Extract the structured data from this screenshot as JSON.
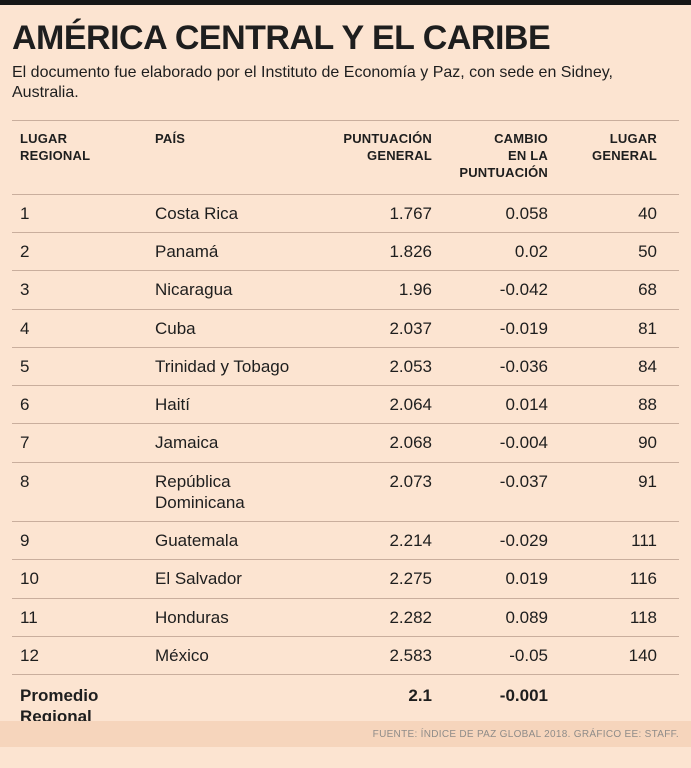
{
  "page": {
    "title": "AMÉRICA CENTRAL Y EL CARIBE",
    "subtitle": "El documento fue elaborado por el Instituto de Economía y Paz, con sede en Sidney, Australia.",
    "source": "FUENTE: ÍNDICE DE PAZ GLOBAL 2018. GRÁFICO EE: STAFF."
  },
  "colors": {
    "background": "#fce4d1",
    "footer_band": "#f6d5bc",
    "rule": "#c9ae9d",
    "text": "#1e1e1e",
    "source_text": "#8f8c89",
    "top_bar": "#161616"
  },
  "table": {
    "headers": {
      "rank_regional": "LUGAR\nREGIONAL",
      "country": "PAÍS",
      "score": "PUNTUACIÓN\nGENERAL",
      "change": "CAMBIO\nEN LA\nPUNTUACIÓN",
      "rank_global": "LUGAR\nGENERAL"
    },
    "rows": [
      {
        "rank": "1",
        "country": "Costa Rica",
        "score": "1.767",
        "change": "0.058",
        "global": "40"
      },
      {
        "rank": "2",
        "country": "Panamá",
        "score": "1.826",
        "change": "0.02",
        "global": "50"
      },
      {
        "rank": "3",
        "country": "Nicaragua",
        "score": "1.96",
        "change": "-0.042",
        "global": "68"
      },
      {
        "rank": "4",
        "country": "Cuba",
        "score": "2.037",
        "change": "-0.019",
        "global": "81"
      },
      {
        "rank": "5",
        "country": "Trinidad y Tobago",
        "score": "2.053",
        "change": "-0.036",
        "global": "84"
      },
      {
        "rank": "6",
        "country": "Haití",
        "score": "2.064",
        "change": "0.014",
        "global": "88"
      },
      {
        "rank": "7",
        "country": "Jamaica",
        "score": "2.068",
        "change": "-0.004",
        "global": "90"
      },
      {
        "rank": "8",
        "country": "República Dominicana",
        "score": "2.073",
        "change": "-0.037",
        "global": "91"
      },
      {
        "rank": "9",
        "country": "Guatemala",
        "score": "2.214",
        "change": "-0.029",
        "global": "111"
      },
      {
        "rank": "10",
        "country": "El Salvador",
        "score": "2.275",
        "change": "0.019",
        "global": "116"
      },
      {
        "rank": "11",
        "country": "Honduras",
        "score": "2.282",
        "change": "0.089",
        "global": "118"
      },
      {
        "rank": "12",
        "country": "México",
        "score": "2.583",
        "change": "-0.05",
        "global": "140"
      }
    ],
    "summary": {
      "label": "Promedio\nRegional",
      "score": "2.1",
      "change": "-0.001"
    }
  },
  "chart_data": {
    "type": "table",
    "title": "AMÉRICA CENTRAL Y EL CARIBE",
    "subtitle": "El documento fue elaborado por el Instituto de Economía y Paz, con sede en Sidney, Australia.",
    "columns": [
      "Lugar regional",
      "País",
      "Puntuación general",
      "Cambio en la puntuación",
      "Lugar general"
    ],
    "rows": [
      [
        1,
        "Costa Rica",
        1.767,
        0.058,
        40
      ],
      [
        2,
        "Panamá",
        1.826,
        0.02,
        50
      ],
      [
        3,
        "Nicaragua",
        1.96,
        -0.042,
        68
      ],
      [
        4,
        "Cuba",
        2.037,
        -0.019,
        81
      ],
      [
        5,
        "Trinidad y Tobago",
        2.053,
        -0.036,
        84
      ],
      [
        6,
        "Haití",
        2.064,
        0.014,
        88
      ],
      [
        7,
        "Jamaica",
        2.068,
        -0.004,
        90
      ],
      [
        8,
        "República Dominicana",
        2.073,
        -0.037,
        91
      ],
      [
        9,
        "Guatemala",
        2.214,
        -0.029,
        111
      ],
      [
        10,
        "El Salvador",
        2.275,
        0.019,
        116
      ],
      [
        11,
        "Honduras",
        2.282,
        0.089,
        118
      ],
      [
        12,
        "México",
        2.583,
        -0.05,
        140
      ]
    ],
    "summary_row": {
      "label": "Promedio Regional",
      "puntuacion_general": 2.1,
      "cambio_en_la_puntuacion": -0.001
    },
    "source": "FUENTE: ÍNDICE DE PAZ GLOBAL 2018. GRÁFICO EE: STAFF."
  }
}
